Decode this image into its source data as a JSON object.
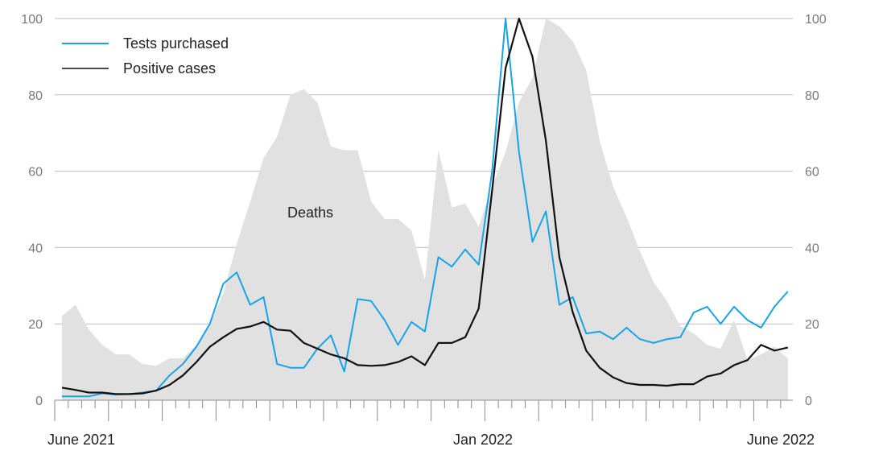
{
  "chart_data": {
    "type": "line",
    "x_tick_labels": [
      "June 2021",
      "Jan 2022",
      "June 2022"
    ],
    "y_ticks": [
      0,
      20,
      40,
      60,
      80,
      100
    ],
    "ylim": [
      0,
      100
    ],
    "y_tick_labels": [
      "0",
      "20",
      "40",
      "60",
      "80",
      "100"
    ],
    "right_y_tick_labels": [
      "0",
      "20",
      "40",
      "60",
      "80",
      "100"
    ],
    "grid": true,
    "legend_position": "top-left",
    "area_label": "Deaths",
    "series": [
      {
        "name": "Tests purchased",
        "kind": "line",
        "color": "#1aa3e8",
        "values": [
          1,
          1,
          1,
          1.8,
          1.5,
          1.6,
          2,
          2.5,
          6.5,
          9.5,
          14,
          20,
          30.5,
          33.5,
          25,
          27,
          9.5,
          8.5,
          8.5,
          13.5,
          17,
          7.5,
          26.5,
          26,
          21,
          14.5,
          20.5,
          18,
          37.5,
          35,
          39.5,
          35.5,
          60,
          100,
          65,
          41.5,
          49.5,
          25,
          27,
          17.5,
          18,
          16,
          19,
          16,
          15,
          16,
          16.5,
          23,
          24.5,
          20,
          24.5,
          21,
          19,
          24.5,
          28.5
        ]
      },
      {
        "name": "Positive cases",
        "kind": "line",
        "color": "#111111",
        "values": [
          3.3,
          2.7,
          2,
          2,
          1.6,
          1.6,
          1.8,
          2.5,
          4,
          6.5,
          10,
          14,
          16.5,
          18.7,
          19.3,
          20.5,
          18.5,
          18.2,
          15,
          13.5,
          12,
          11,
          9.2,
          9,
          9.2,
          10,
          11.5,
          9.2,
          15,
          15,
          16.5,
          24,
          55,
          87,
          100,
          90,
          68,
          37.5,
          23,
          13,
          8.5,
          6,
          4.5,
          4,
          4,
          3.8,
          4.2,
          4.2,
          6.2,
          7,
          9.2,
          10.5,
          14.5,
          13,
          13.8
        ]
      },
      {
        "name": "Deaths",
        "kind": "area",
        "color": "#e1e1e1",
        "values": [
          22,
          25,
          18.5,
          14.5,
          12,
          12,
          9.5,
          9,
          11,
          11,
          14.5,
          20,
          28,
          41,
          52,
          63.5,
          69,
          80,
          81.5,
          78,
          66.5,
          65.5,
          65.5,
          52,
          47.5,
          47.5,
          44.5,
          31.5,
          65.5,
          50.5,
          51.5,
          45.5,
          56,
          65,
          78,
          84.5,
          100,
          98,
          94,
          86.5,
          68,
          56,
          48,
          39,
          31,
          26,
          19.5,
          17.5,
          14.5,
          13.5,
          21,
          10.5,
          12,
          14,
          11
        ]
      }
    ]
  }
}
